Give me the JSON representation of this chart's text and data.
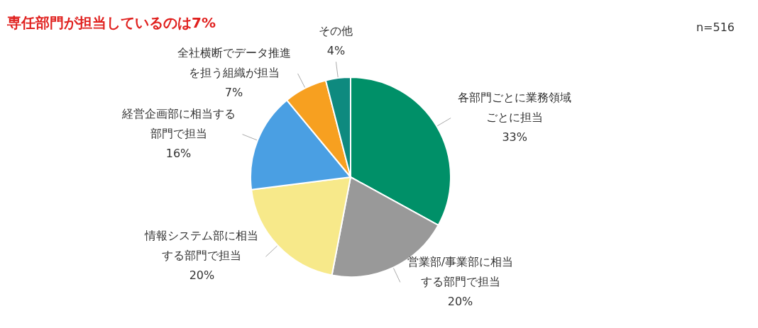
{
  "chart_data": {
    "type": "pie",
    "title": "専任部門が担当しているのは7%",
    "annotations": [
      "n=516"
    ],
    "categories": [
      "各部門ごとに業務領域ごとに担当",
      "営業部/事業部に相当する部門で担当",
      "情報システム部に相当する部門で担当",
      "経営企画部に相当する部門で担当",
      "全社横断でデータ推進を担う組織が担当",
      "その他"
    ],
    "values": [
      33,
      20,
      20,
      16,
      7,
      4
    ],
    "colors": [
      "#009068",
      "#999999",
      "#f7e98a",
      "#4a9fe3",
      "#f7a020",
      "#0e8a7f"
    ],
    "value_labels": [
      "33%",
      "20%",
      "20%",
      "16%",
      "7%",
      "4%"
    ],
    "legend": false
  }
}
